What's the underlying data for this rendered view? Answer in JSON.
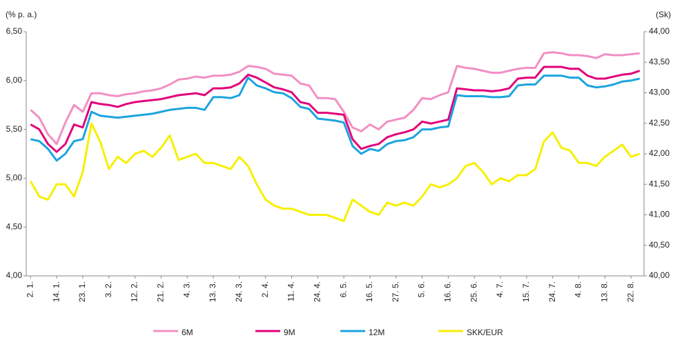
{
  "chart_data": {
    "type": "line",
    "y_label": "(% p. a.)",
    "y2_label": "(Sk)",
    "categories": [
      "2. 1.",
      null,
      null,
      "14. 1.",
      null,
      null,
      "23. 1.",
      null,
      null,
      "3. 2.",
      null,
      null,
      "12. 2.",
      null,
      null,
      "21. 2.",
      null,
      null,
      "4. 3.",
      null,
      null,
      "13. 3.",
      null,
      null,
      "24. 3.",
      null,
      null,
      "2. 4.",
      null,
      null,
      "11. 4.",
      null,
      null,
      "24. 4.",
      null,
      null,
      "6. 5.",
      null,
      null,
      "16. 5.",
      null,
      null,
      "27. 5.",
      null,
      null,
      "5. 6.",
      null,
      null,
      "16. 6.",
      null,
      null,
      "25. 6.",
      null,
      null,
      "4. 7.",
      null,
      null,
      "15. 7.",
      null,
      null,
      "24. 7.",
      null,
      null,
      "4. 8.",
      null,
      null,
      "13. 8.",
      null,
      null,
      "22. 8.",
      null
    ],
    "series": [
      {
        "name": "6M",
        "color": "#f28fc3",
        "values": [
          5.7,
          5.62,
          5.45,
          5.35,
          5.57,
          5.75,
          5.68,
          5.87,
          5.87,
          5.85,
          5.84,
          5.86,
          5.87,
          5.89,
          5.9,
          5.92,
          5.96,
          6.01,
          6.02,
          6.04,
          6.03,
          6.05,
          6.05,
          6.06,
          6.09,
          6.15,
          6.14,
          6.12,
          6.07,
          6.06,
          6.05,
          5.97,
          5.95,
          5.82,
          5.82,
          5.81,
          5.68,
          5.52,
          5.48,
          5.55,
          5.5,
          5.58,
          5.6,
          5.62,
          5.7,
          5.82,
          5.81,
          5.85,
          5.88,
          6.15,
          6.13,
          6.12,
          6.1,
          6.08,
          6.08,
          6.1,
          6.12,
          6.13,
          6.13,
          6.28,
          6.29,
          6.28,
          6.26,
          6.26,
          6.25,
          6.23,
          6.27,
          6.26,
          6.26,
          6.27,
          6.28
        ]
      },
      {
        "name": "9M",
        "color": "#e2007a",
        "values": [
          5.55,
          5.5,
          5.35,
          5.27,
          5.35,
          5.55,
          5.52,
          5.78,
          5.76,
          5.75,
          5.73,
          5.76,
          5.78,
          5.79,
          5.8,
          5.81,
          5.83,
          5.85,
          5.86,
          5.87,
          5.85,
          5.92,
          5.92,
          5.93,
          5.97,
          6.06,
          6.03,
          5.98,
          5.93,
          5.91,
          5.88,
          5.78,
          5.76,
          5.67,
          5.67,
          5.66,
          5.65,
          5.4,
          5.3,
          5.33,
          5.35,
          5.42,
          5.45,
          5.47,
          5.5,
          5.58,
          5.56,
          5.58,
          5.6,
          5.92,
          5.91,
          5.9,
          5.9,
          5.89,
          5.9,
          5.92,
          6.02,
          6.03,
          6.03,
          6.14,
          6.14,
          6.14,
          6.12,
          6.12,
          6.05,
          6.02,
          6.02,
          6.04,
          6.06,
          6.07,
          6.1
        ]
      },
      {
        "name": "12M",
        "color": "#1ba4e0",
        "values": [
          5.4,
          5.38,
          5.3,
          5.18,
          5.25,
          5.38,
          5.4,
          5.68,
          5.64,
          5.63,
          5.62,
          5.63,
          5.64,
          5.65,
          5.66,
          5.68,
          5.7,
          5.71,
          5.72,
          5.72,
          5.7,
          5.83,
          5.83,
          5.82,
          5.85,
          6.03,
          5.95,
          5.92,
          5.88,
          5.87,
          5.82,
          5.73,
          5.71,
          5.61,
          5.6,
          5.59,
          5.57,
          5.33,
          5.25,
          5.3,
          5.28,
          5.35,
          5.38,
          5.39,
          5.42,
          5.5,
          5.5,
          5.52,
          5.53,
          5.85,
          5.84,
          5.84,
          5.84,
          5.83,
          5.83,
          5.84,
          5.95,
          5.96,
          5.96,
          6.05,
          6.05,
          6.05,
          6.03,
          6.03,
          5.95,
          5.93,
          5.94,
          5.96,
          5.99,
          6.0,
          6.02
        ]
      },
      {
        "name": "SKK/EUR",
        "color": "#f7ef00",
        "axis": "y2",
        "values": [
          41.55,
          41.3,
          41.25,
          41.5,
          41.5,
          41.3,
          41.7,
          42.5,
          42.2,
          41.75,
          41.95,
          41.85,
          42.0,
          42.05,
          41.95,
          42.1,
          42.3,
          41.9,
          41.95,
          42.0,
          41.85,
          41.85,
          41.8,
          41.75,
          41.95,
          41.8,
          41.5,
          41.25,
          41.15,
          41.1,
          41.1,
          41.05,
          41.0,
          41.0,
          41.0,
          40.95,
          40.9,
          41.25,
          41.15,
          41.05,
          41.0,
          41.2,
          41.15,
          41.2,
          41.15,
          41.3,
          41.5,
          41.45,
          41.5,
          41.6,
          41.8,
          41.85,
          41.7,
          41.5,
          41.6,
          41.55,
          41.65,
          41.65,
          41.75,
          42.2,
          42.35,
          42.1,
          42.05,
          41.85,
          41.85,
          41.8,
          41.95,
          42.05,
          42.15,
          41.95,
          42.0
        ]
      }
    ],
    "ylim": [
      4.0,
      6.5
    ],
    "yticks": [
      {
        "value": 4.0,
        "label": "4,00"
      },
      {
        "value": 4.5,
        "label": "4,50"
      },
      {
        "value": 5.0,
        "label": "5,00"
      },
      {
        "value": 5.5,
        "label": "5,50"
      },
      {
        "value": 6.0,
        "label": "6,00"
      },
      {
        "value": 6.5,
        "label": "6,50"
      }
    ],
    "y2lim": [
      40.0,
      44.0
    ],
    "y2ticks": [
      {
        "value": 40.0,
        "label": "40,00"
      },
      {
        "value": 40.5,
        "label": "40,50"
      },
      {
        "value": 41.0,
        "label": "41,00"
      },
      {
        "value": 41.5,
        "label": "41,50"
      },
      {
        "value": 42.0,
        "label": "42,00"
      },
      {
        "value": 42.5,
        "label": "42,50"
      },
      {
        "value": 43.0,
        "label": "43,00"
      },
      {
        "value": 43.5,
        "label": "43,50"
      },
      {
        "value": 44.0,
        "label": "44,00"
      }
    ],
    "grid": false,
    "legend": "bottom"
  }
}
